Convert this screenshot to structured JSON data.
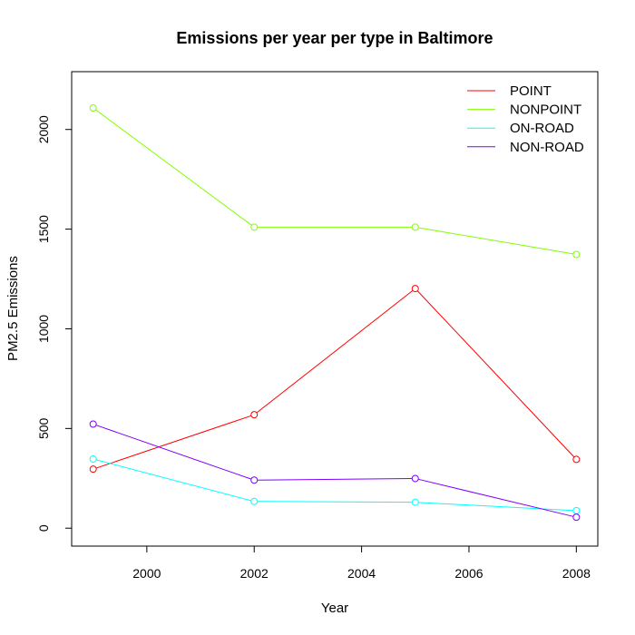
{
  "chart_data": {
    "type": "line",
    "title": "Emissions per year per type in Baltimore",
    "xlabel": "Year",
    "ylabel": "PM2.5 Emissions",
    "x": [
      1999,
      2002,
      2005,
      2008
    ],
    "xlim": [
      1998.6,
      2008.4
    ],
    "ylim": [
      -90,
      2290
    ],
    "xticks": [
      2000,
      2002,
      2004,
      2006,
      2008
    ],
    "yticks": [
      0,
      500,
      1000,
      1500,
      2000
    ],
    "legend_position": "top-right",
    "grid": false,
    "series": [
      {
        "name": "POINT",
        "color": "#ff0000",
        "values": [
          296,
          569,
          1202,
          345
        ]
      },
      {
        "name": "NONPOINT",
        "color": "#80ff00",
        "values": [
          2108,
          1510,
          1510,
          1373
        ]
      },
      {
        "name": "ON-ROAD",
        "color": "#00ffff",
        "values": [
          347,
          134,
          130,
          88
        ]
      },
      {
        "name": "NON-ROAD",
        "color": "#8000ff",
        "values": [
          522,
          241,
          249,
          55
        ]
      }
    ]
  }
}
